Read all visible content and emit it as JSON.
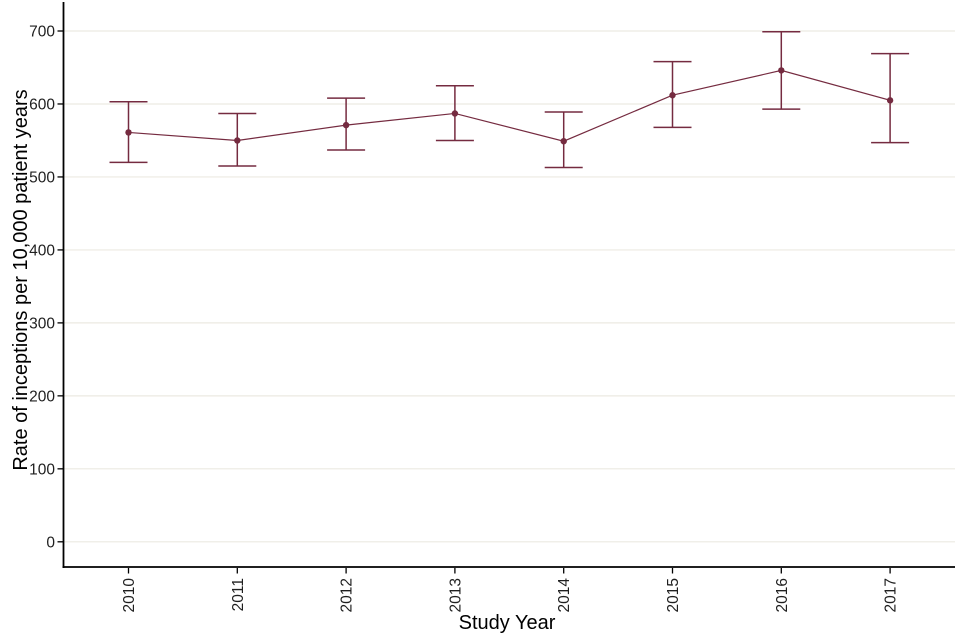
{
  "chart_data": {
    "type": "line",
    "title": "",
    "xlabel": "Study Year",
    "ylabel": "Rate of inceptions per 10,000 patient years",
    "categories": [
      "2010",
      "2011",
      "2012",
      "2013",
      "2014",
      "2015",
      "2016",
      "2017"
    ],
    "series": [
      {
        "name": "Rate of inceptions",
        "values": [
          561,
          550,
          571,
          587,
          549,
          612,
          646,
          605
        ],
        "ci_low": [
          520,
          515,
          537,
          550,
          513,
          568,
          593,
          547
        ],
        "ci_high": [
          603,
          587,
          608,
          625,
          589,
          658,
          699,
          669
        ]
      }
    ],
    "ylim": [
      0,
      700
    ],
    "yticks": [
      0,
      100,
      200,
      300,
      400,
      500,
      600,
      700
    ],
    "grid": "horizontal-only",
    "legend": "none",
    "marker": "filled-circle",
    "error_bars": "capped",
    "colors": {
      "line": "#752b40",
      "marker": "#752b40",
      "grid": "#eceae2",
      "axis": "#000000",
      "background": "#ffffff"
    }
  }
}
